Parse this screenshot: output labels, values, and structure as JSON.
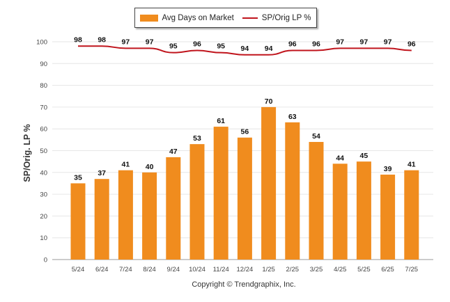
{
  "chart_data": {
    "type": "bar",
    "title": "",
    "xlabel": "",
    "ylabel": "SP/Orig. LP %",
    "ylim": [
      0,
      100
    ],
    "yticks": [
      0,
      10,
      20,
      30,
      40,
      50,
      60,
      70,
      80,
      90,
      100
    ],
    "grid": true,
    "legend_position": "top-center",
    "categories": [
      "5/24",
      "6/24",
      "7/24",
      "8/24",
      "9/24",
      "10/24",
      "11/24",
      "12/24",
      "1/25",
      "2/25",
      "3/25",
      "4/25",
      "5/25",
      "6/25",
      "7/25"
    ],
    "series": [
      {
        "name": "Avg Days on Market",
        "type": "bar",
        "color": "#f08c1e",
        "values": [
          35,
          37,
          41,
          40,
          47,
          53,
          61,
          56,
          70,
          63,
          54,
          44,
          45,
          39,
          41
        ]
      },
      {
        "name": "SP/Orig LP %",
        "type": "line",
        "color": "#c0141c",
        "values": [
          98,
          98,
          97,
          97,
          95,
          96,
          95,
          94,
          94,
          96,
          96,
          97,
          97,
          97,
          96
        ]
      }
    ]
  },
  "footer": {
    "copyright": "Copyright © Trendgraphix, Inc."
  }
}
